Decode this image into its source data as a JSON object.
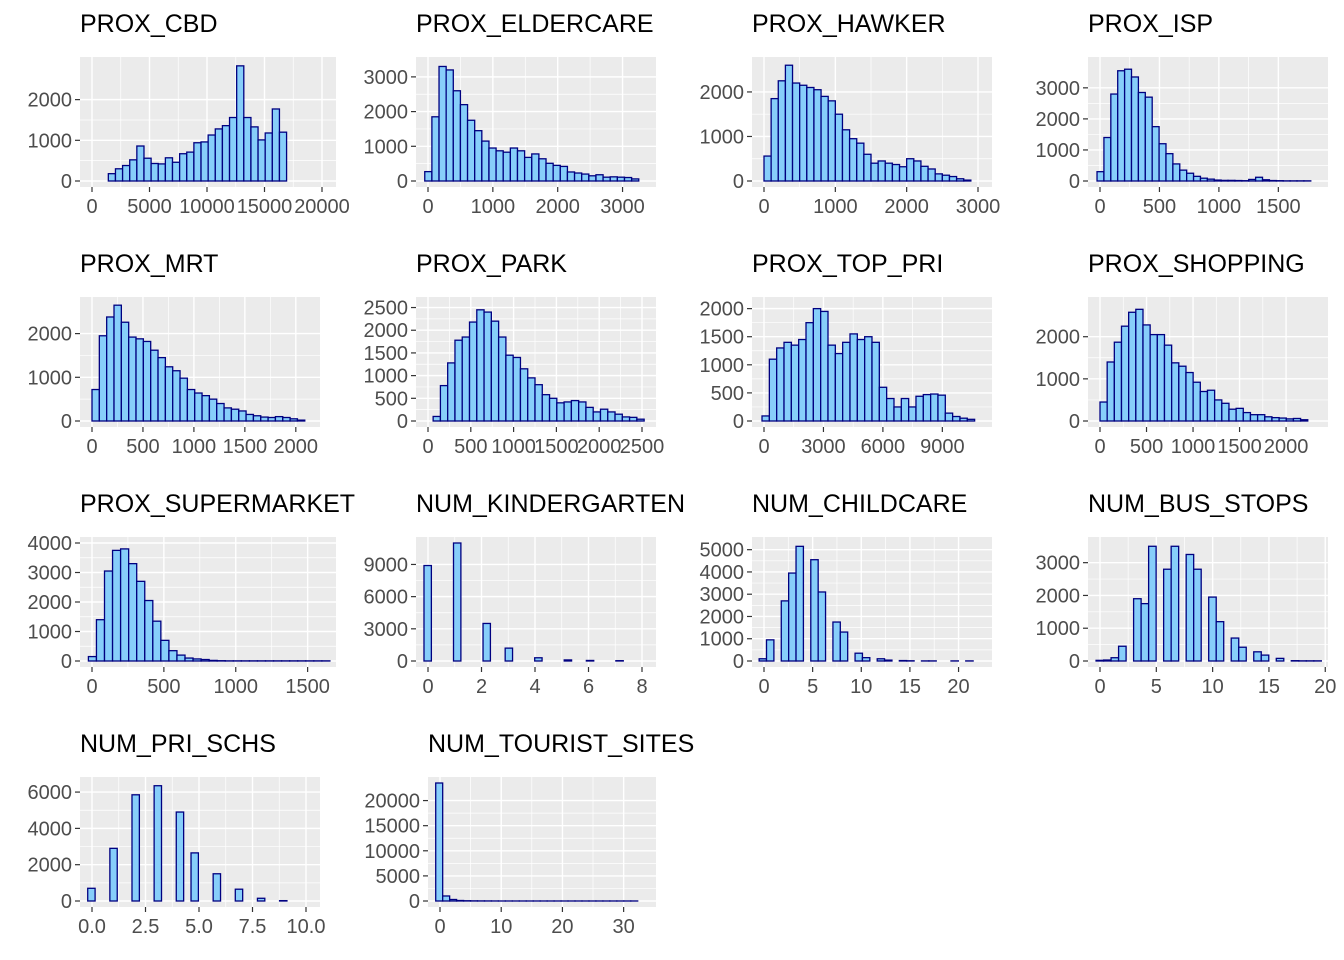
{
  "colors": {
    "bar_fill": "#87CEFA",
    "bar_stroke": "#000080",
    "panel_bg": "#EBEBEB",
    "grid": "#FFFFFF",
    "tick_label": "#4D4D4D"
  },
  "chart_data": [
    {
      "type": "bar",
      "title": "PROX_CBD",
      "xlim": [
        0,
        20000
      ],
      "ylim": [
        0,
        2900
      ],
      "xticks": [
        0,
        5000,
        10000,
        15000,
        20000
      ],
      "xtick_labels": [
        "0",
        "5000",
        "10000",
        "15000",
        "20000"
      ],
      "yticks": [
        0,
        1000,
        2000
      ],
      "ytick_labels": [
        "0",
        "1000",
        "2000"
      ],
      "bin_start": 800,
      "bin_width": 620,
      "values": [
        0,
        180,
        300,
        380,
        520,
        860,
        560,
        430,
        420,
        570,
        460,
        670,
        710,
        940,
        960,
        1130,
        1280,
        1360,
        1560,
        2830,
        1560,
        1330,
        1010,
        1180,
        1770,
        1200,
        0
      ]
    },
    {
      "type": "bar",
      "title": "PROX_ELDERCARE",
      "xlim": [
        0,
        3300
      ],
      "ylim": [
        0,
        3400
      ],
      "xticks": [
        0,
        1000,
        2000,
        3000
      ],
      "xtick_labels": [
        "0",
        "1000",
        "2000",
        "3000"
      ],
      "yticks": [
        0,
        1000,
        2000,
        3000
      ],
      "ytick_labels": [
        "0",
        "1000",
        "2000",
        "3000"
      ],
      "bin_start": -50,
      "bin_width": 110,
      "values": [
        270,
        1850,
        3300,
        3200,
        2600,
        2200,
        1750,
        1450,
        1150,
        950,
        870,
        830,
        950,
        870,
        680,
        780,
        640,
        510,
        450,
        420,
        260,
        230,
        200,
        150,
        180,
        110,
        120,
        110,
        100,
        60
      ]
    },
    {
      "type": "bar",
      "title": "PROX_HAWKER",
      "xlim": [
        0,
        3000
      ],
      "ylim": [
        0,
        2650
      ],
      "xticks": [
        0,
        1000,
        2000,
        3000
      ],
      "xtick_labels": [
        "0",
        "1000",
        "2000",
        "3000"
      ],
      "yticks": [
        0,
        1000,
        2000
      ],
      "ytick_labels": [
        "0",
        "1000",
        "2000"
      ],
      "bin_start": 0,
      "bin_width": 100,
      "values": [
        560,
        1850,
        2250,
        2600,
        2200,
        2150,
        2100,
        2050,
        1900,
        1800,
        1500,
        1150,
        950,
        850,
        600,
        400,
        450,
        400,
        370,
        320,
        500,
        450,
        330,
        270,
        160,
        130,
        100,
        50,
        20
      ]
    },
    {
      "type": "bar",
      "title": "PROX_ISP",
      "xlim": [
        0,
        1800
      ],
      "ylim": [
        0,
        3800
      ],
      "xticks": [
        0,
        500,
        1000,
        1500
      ],
      "xtick_labels": [
        "0",
        "500",
        "1000",
        "1500"
      ],
      "yticks": [
        0,
        1000,
        2000,
        3000
      ],
      "ytick_labels": [
        "0",
        "1000",
        "2000",
        "3000"
      ],
      "bin_start": -25,
      "bin_width": 58,
      "values": [
        300,
        1400,
        2800,
        3550,
        3600,
        3350,
        2850,
        2700,
        1750,
        1200,
        880,
        550,
        350,
        250,
        150,
        90,
        60,
        30,
        20,
        20,
        15,
        10,
        50,
        120,
        40,
        15,
        10,
        5,
        5,
        5,
        5
      ]
    },
    {
      "type": "bar",
      "title": "PROX_MRT",
      "xlim": [
        0,
        2100
      ],
      "ylim": [
        0,
        2700
      ],
      "xticks": [
        0,
        500,
        1000,
        1500,
        2000
      ],
      "xtick_labels": [
        "0",
        "500",
        "1000",
        "1500",
        "2000"
      ],
      "yticks": [
        0,
        1000,
        2000
      ],
      "ytick_labels": [
        "0",
        "1000",
        "2000"
      ],
      "bin_start": 0,
      "bin_width": 72,
      "values": [
        720,
        1950,
        2380,
        2650,
        2260,
        1920,
        1880,
        1820,
        1620,
        1450,
        1240,
        1150,
        980,
        720,
        640,
        580,
        500,
        400,
        300,
        270,
        230,
        150,
        120,
        90,
        80,
        100,
        80,
        50,
        20
      ]
    },
    {
      "type": "bar",
      "title": "PROX_PARK",
      "xlim": [
        0,
        2500
      ],
      "ylim": [
        0,
        2600
      ],
      "xticks": [
        0,
        500,
        1000,
        1500,
        2000,
        2500
      ],
      "xtick_labels": [
        "0",
        "500",
        "1000",
        "1500",
        "2000",
        "2500"
      ],
      "yticks": [
        0,
        500,
        1000,
        1500,
        2000,
        2500
      ],
      "ytick_labels": [
        "0",
        "500",
        "1000",
        "1500",
        "2000",
        "2500"
      ],
      "bin_start": -25,
      "bin_width": 85,
      "values": [
        0,
        100,
        780,
        1280,
        1780,
        1850,
        2180,
        2450,
        2400,
        2200,
        1850,
        1450,
        1400,
        1150,
        950,
        800,
        580,
        500,
        400,
        420,
        450,
        420,
        300,
        200,
        260,
        200,
        150,
        90,
        80,
        40
      ]
    },
    {
      "type": "bar",
      "title": "PROX_TOP_PRI",
      "xlim": [
        0,
        10800
      ],
      "ylim": [
        0,
        2100
      ],
      "xticks": [
        0,
        3000,
        6000,
        9000
      ],
      "xtick_labels": [
        "0",
        "3000",
        "6000",
        "9000"
      ],
      "yticks": [
        0,
        500,
        1000,
        1500,
        2000
      ],
      "ytick_labels": [
        "0",
        "500",
        "1000",
        "1500",
        "2000"
      ],
      "bin_start": -100,
      "bin_width": 370,
      "values": [
        90,
        1100,
        1300,
        1400,
        1350,
        1450,
        1750,
        2000,
        1950,
        1350,
        1200,
        1400,
        1550,
        1450,
        1500,
        1400,
        600,
        400,
        250,
        400,
        250,
        440,
        470,
        480,
        460,
        140,
        80,
        50,
        30
      ]
    },
    {
      "type": "bar",
      "title": "PROX_SHOPPING",
      "xlim": [
        0,
        2300
      ],
      "ylim": [
        0,
        2800
      ],
      "xticks": [
        0,
        500,
        1000,
        1500,
        2000
      ],
      "xtick_labels": [
        "0",
        "500",
        "1000",
        "1500",
        "2000"
      ],
      "yticks": [
        0,
        1000,
        2000
      ],
      "ytick_labels": [
        "0",
        "1000",
        "2000"
      ],
      "bin_start": 0,
      "bin_width": 77,
      "values": [
        450,
        1400,
        1870,
        2250,
        2580,
        2650,
        2280,
        2050,
        2050,
        1800,
        1380,
        1300,
        1150,
        920,
        700,
        730,
        500,
        420,
        280,
        300,
        200,
        150,
        150,
        100,
        80,
        70,
        50,
        60,
        30
      ]
    },
    {
      "type": "bar",
      "title": "PROX_SUPERMARKET",
      "xlim": [
        0,
        1600
      ],
      "ylim": [
        0,
        4000
      ],
      "xticks": [
        0,
        500,
        1000,
        1500
      ],
      "xtick_labels": [
        "0",
        "500",
        "1000",
        "1500"
      ],
      "yticks": [
        0,
        1000,
        2000,
        3000,
        4000
      ],
      "ytick_labels": [
        "0",
        "1000",
        "2000",
        "3000",
        "4000"
      ],
      "bin_start": -25,
      "bin_width": 56,
      "values": [
        150,
        1400,
        3050,
        3750,
        3800,
        3300,
        2700,
        2050,
        1350,
        700,
        350,
        200,
        100,
        70,
        50,
        20,
        10,
        5,
        5,
        5,
        5,
        5,
        5,
        5,
        5,
        5,
        5,
        5,
        5,
        5
      ]
    },
    {
      "type": "bar",
      "title": "NUM_KINDERGARTEN",
      "xlim": [
        0,
        8
      ],
      "ylim": [
        0,
        11000
      ],
      "xticks": [
        0,
        2,
        4,
        6,
        8
      ],
      "xtick_labels": [
        "0",
        "2",
        "4",
        "6",
        "8"
      ],
      "yticks": [
        0,
        3000,
        6000,
        9000
      ],
      "ytick_labels": [
        "0",
        "3000",
        "6000",
        "9000"
      ],
      "bin_start": -0.15,
      "bin_width": 0.2759,
      "values": [
        8900,
        0,
        0,
        0,
        11000,
        0,
        0,
        0,
        3500,
        0,
        0,
        1200,
        0,
        0,
        0,
        300,
        0,
        0,
        0,
        100,
        0,
        0,
        50,
        0,
        0,
        0,
        30,
        0,
        0
      ]
    },
    {
      "type": "bar",
      "title": "NUM_CHILDCARE",
      "xlim": [
        0,
        22
      ],
      "ylim": [
        0,
        5300
      ],
      "xticks": [
        0,
        5,
        10,
        15,
        20
      ],
      "xtick_labels": [
        "0",
        "5",
        "10",
        "15",
        "20"
      ],
      "yticks": [
        0,
        1000,
        2000,
        3000,
        4000,
        5000
      ],
      "ytick_labels": [
        "0",
        "1000",
        "2000",
        "3000",
        "4000",
        "5000"
      ],
      "bin_start": -0.5,
      "bin_width": 0.7586,
      "values": [
        100,
        950,
        0,
        2700,
        3950,
        5150,
        0,
        4550,
        3100,
        0,
        1750,
        1300,
        0,
        350,
        150,
        0,
        100,
        40,
        0,
        20,
        10,
        0,
        5,
        5,
        0,
        0,
        5,
        0,
        5
      ]
    },
    {
      "type": "bar",
      "title": "NUM_BUS_STOPS",
      "xlim": [
        0,
        19
      ],
      "ylim": [
        0,
        3600
      ],
      "xticks": [
        0,
        5,
        10,
        15,
        20
      ],
      "xtick_labels": [
        "0",
        "5",
        "10",
        "15",
        "20"
      ],
      "yticks": [
        0,
        1000,
        2000,
        3000
      ],
      "ytick_labels": [
        "0",
        "1000",
        "2000",
        "3000"
      ],
      "bin_start": -0.35,
      "bin_width": 0.6667,
      "values": [
        20,
        30,
        100,
        450,
        0,
        1900,
        1750,
        3500,
        0,
        2800,
        3500,
        0,
        3250,
        2800,
        0,
        1950,
        1200,
        0,
        700,
        420,
        0,
        280,
        180,
        0,
        80,
        0,
        10,
        5,
        5,
        5
      ]
    },
    {
      "type": "bar",
      "title": "NUM_PRI_SCHS",
      "xlim": [
        0,
        10
      ],
      "ylim": [
        0,
        6500
      ],
      "xticks": [
        0,
        2.5,
        5,
        7.5,
        10
      ],
      "xtick_labels": [
        "0.0",
        "2.5",
        "5.0",
        "7.5",
        "10.0"
      ],
      "yticks": [
        0,
        2000,
        4000,
        6000
      ],
      "ytick_labels": [
        "0",
        "2000",
        "4000",
        "6000"
      ],
      "bin_start": -0.2,
      "bin_width": 0.3448,
      "values": [
        700,
        0,
        0,
        2900,
        0,
        0,
        5850,
        0,
        0,
        6350,
        0,
        0,
        4900,
        0,
        2650,
        0,
        0,
        1500,
        0,
        0,
        650,
        0,
        0,
        150,
        0,
        0,
        20,
        0,
        0,
        0
      ]
    },
    {
      "type": "bar",
      "title": "NUM_TOURIST_SITES",
      "xlim": [
        0,
        33
      ],
      "ylim": [
        0,
        23500
      ],
      "xticks": [
        0,
        10,
        20,
        30
      ],
      "xtick_labels": [
        "0",
        "10",
        "20",
        "30"
      ],
      "yticks": [
        0,
        5000,
        10000,
        15000,
        20000
      ],
      "ytick_labels": [
        "0",
        "5000",
        "10000",
        "15000",
        "20000"
      ],
      "bin_start": -0.7,
      "bin_width": 1.1379,
      "values": [
        23500,
        1000,
        300,
        100,
        50,
        30,
        20,
        15,
        10,
        5,
        5,
        5,
        5,
        5,
        5,
        5,
        5,
        5,
        5,
        5,
        5,
        5,
        5,
        5,
        5,
        5,
        5,
        5,
        5
      ]
    }
  ]
}
